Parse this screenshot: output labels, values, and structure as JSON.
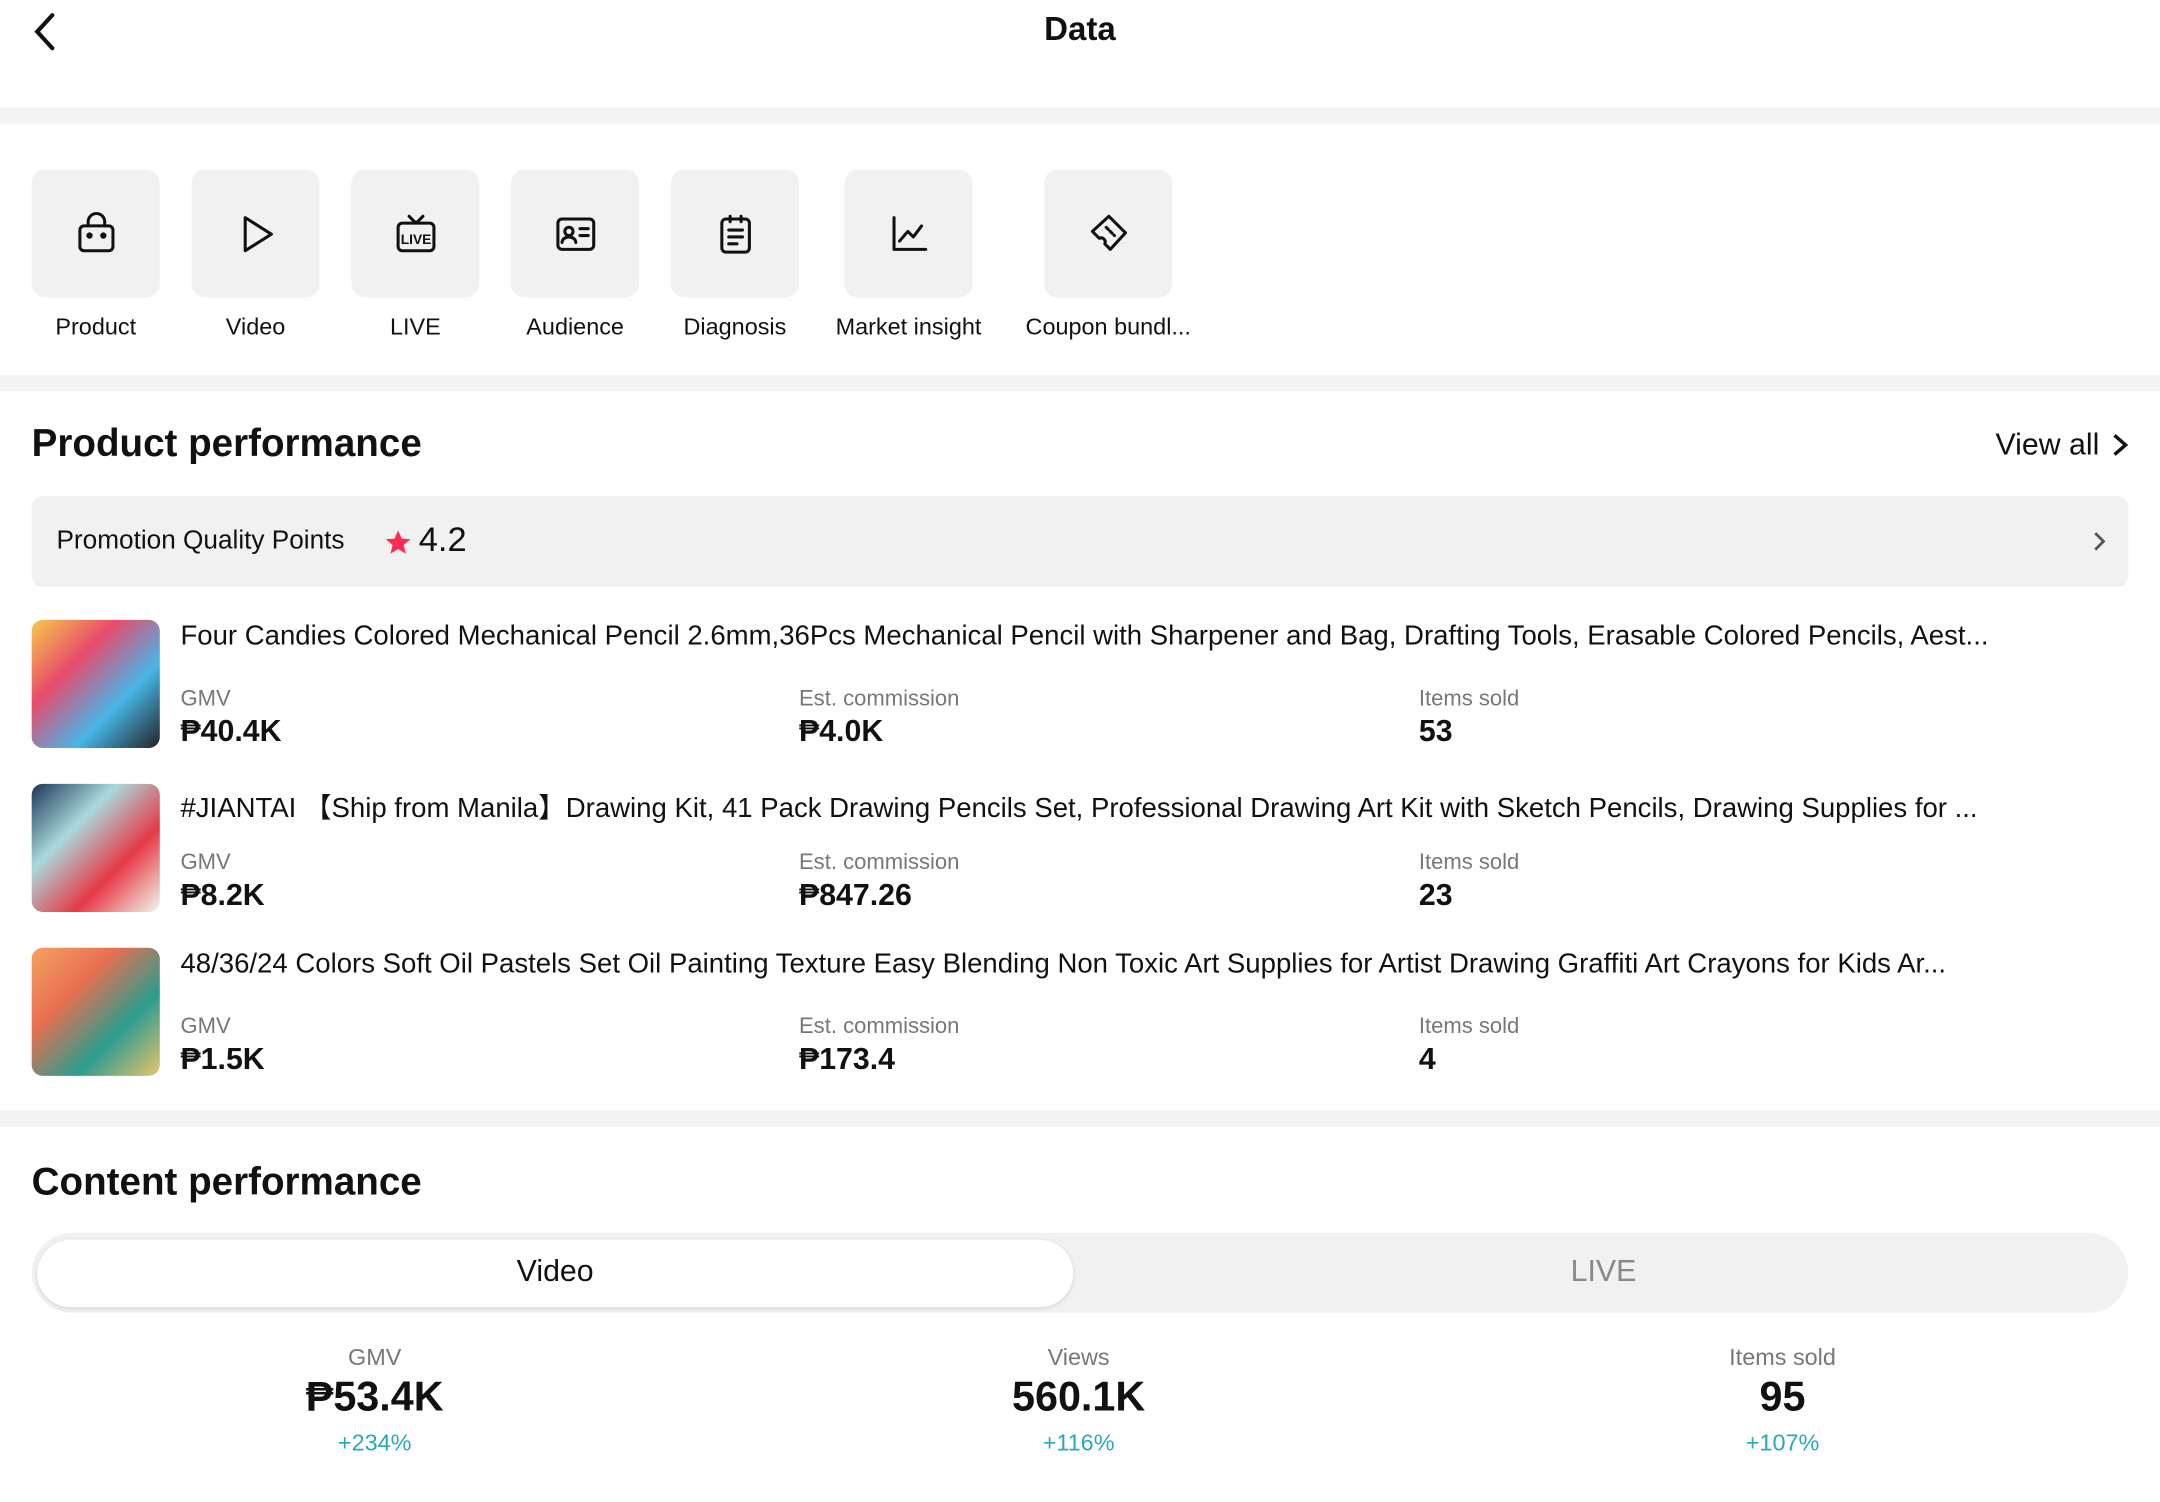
{
  "header": {
    "title": "Data"
  },
  "shortcuts": [
    "Product",
    "Video",
    "LIVE",
    "Audience",
    "Diagnosis",
    "Market insight",
    "Coupon bundl..."
  ],
  "product_performance": {
    "title": "Product performance",
    "view_all": "View all",
    "quality_label": "Promotion Quality Points",
    "quality_score": "4.2",
    "products": [
      {
        "name": "Four Candies Colored Mechanical Pencil 2.6mm,36Pcs Mechanical Pencil with Sharpener and Bag, Drafting Tools, Erasable Colored Pencils, Aest...",
        "metrics": [
          {
            "label": "GMV",
            "value": "₱40.4K"
          },
          {
            "label": "Est. commission",
            "value": "₱4.0K"
          },
          {
            "label": "Items sold",
            "value": "53"
          }
        ]
      },
      {
        "name": "#JIANTAI 【Ship from Manila】Drawing Kit, 41 Pack Drawing Pencils Set, Professional Drawing Art Kit with Sketch Pencils, Drawing Supplies for ...",
        "metrics": [
          {
            "label": "GMV",
            "value": "₱8.2K"
          },
          {
            "label": "Est. commission",
            "value": "₱847.26"
          },
          {
            "label": "Items sold",
            "value": "23"
          }
        ]
      },
      {
        "name": "48/36/24 Colors Soft Oil Pastels Set Oil Painting Texture Easy Blending Non Toxic Art Supplies for Artist Drawing Graffiti Art Crayons for Kids Ar...",
        "metrics": [
          {
            "label": "GMV",
            "value": "₱1.5K"
          },
          {
            "label": "Est. commission",
            "value": "₱173.4"
          },
          {
            "label": "Items sold",
            "value": "4"
          }
        ]
      }
    ]
  },
  "content_performance": {
    "title": "Content performance",
    "tabs": [
      "Video",
      "LIVE"
    ],
    "metrics": [
      {
        "label": "GMV",
        "value": "₱53.4K",
        "change": "+234%"
      },
      {
        "label": "Views",
        "value": "560.1K",
        "change": "+116%"
      },
      {
        "label": "Items sold",
        "value": "95",
        "change": "+107%"
      }
    ]
  }
}
